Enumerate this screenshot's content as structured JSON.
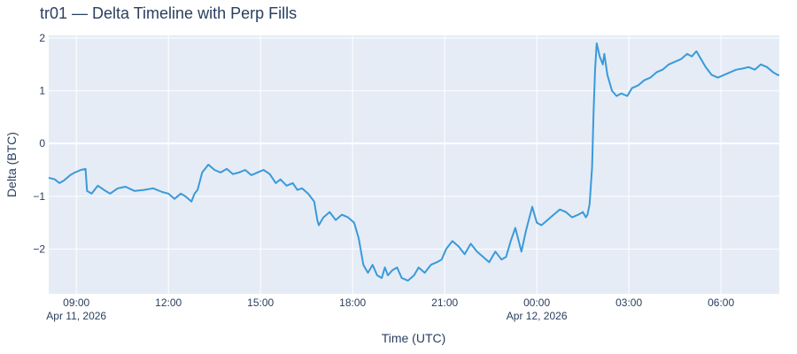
{
  "chart_data": {
    "type": "line",
    "title": "tr01 — Delta Timeline with Perp Fills",
    "xlabel": "Time (UTC)",
    "ylabel": "Delta (BTC)",
    "x_unit": "hours since 2026-04-11 00:00 UTC",
    "xlim": [
      8.1,
      31.9
    ],
    "ylim": [
      -2.85,
      2.05
    ],
    "yticks": [
      2,
      1,
      0,
      -1,
      -2
    ],
    "ytick_labels": [
      "2",
      "1",
      "0",
      "−1",
      "−2"
    ],
    "xticks": [
      {
        "x": 9,
        "label": "09:00",
        "date_label": "Apr 11, 2026"
      },
      {
        "x": 12,
        "label": "12:00",
        "date_label": ""
      },
      {
        "x": 15,
        "label": "15:00",
        "date_label": ""
      },
      {
        "x": 18,
        "label": "18:00",
        "date_label": ""
      },
      {
        "x": 21,
        "label": "21:00",
        "date_label": ""
      },
      {
        "x": 24,
        "label": "00:00",
        "date_label": "Apr 12, 2026"
      },
      {
        "x": 27,
        "label": "03:00",
        "date_label": ""
      },
      {
        "x": 30,
        "label": "06:00",
        "date_label": ""
      }
    ],
    "grid": true,
    "line_color": "#3a9ad9",
    "plot_bg": "#e5ecf6",
    "series": [
      {
        "name": "Delta",
        "x": [
          8.1,
          8.3,
          8.45,
          8.6,
          8.8,
          8.95,
          9.15,
          9.3,
          9.35,
          9.5,
          9.7,
          9.9,
          10.1,
          10.35,
          10.6,
          10.9,
          11.2,
          11.5,
          11.8,
          12.0,
          12.2,
          12.4,
          12.55,
          12.75,
          12.85,
          12.95,
          13.1,
          13.3,
          13.5,
          13.7,
          13.9,
          14.1,
          14.3,
          14.5,
          14.7,
          14.9,
          15.1,
          15.3,
          15.5,
          15.65,
          15.85,
          16.05,
          16.2,
          16.35,
          16.55,
          16.75,
          16.85,
          16.9,
          17.05,
          17.25,
          17.45,
          17.65,
          17.85,
          18.05,
          18.2,
          18.35,
          18.5,
          18.65,
          18.8,
          18.95,
          19.05,
          19.15,
          19.3,
          19.45,
          19.6,
          19.8,
          20.0,
          20.15,
          20.35,
          20.55,
          20.75,
          20.9,
          21.05,
          21.25,
          21.45,
          21.65,
          21.85,
          22.05,
          22.25,
          22.45,
          22.65,
          22.85,
          23.0,
          23.15,
          23.3,
          23.5,
          23.65,
          23.85,
          24.0,
          24.15,
          24.35,
          24.55,
          24.75,
          24.95,
          25.15,
          25.35,
          25.5,
          25.6,
          25.65,
          25.72,
          25.8,
          25.85,
          25.9,
          25.95,
          26.05,
          26.15,
          26.2,
          26.3,
          26.45,
          26.6,
          26.75,
          26.95,
          27.1,
          27.3,
          27.5,
          27.7,
          27.9,
          28.1,
          28.3,
          28.5,
          28.7,
          28.9,
          29.05,
          29.2,
          29.35,
          29.5,
          29.7,
          29.9,
          30.1,
          30.3,
          30.5,
          30.7,
          30.9,
          31.1,
          31.3,
          31.5,
          31.7,
          31.85,
          31.9
        ],
        "y": [
          -0.65,
          -0.68,
          -0.75,
          -0.7,
          -0.6,
          -0.55,
          -0.5,
          -0.48,
          -0.9,
          -0.95,
          -0.8,
          -0.88,
          -0.95,
          -0.85,
          -0.82,
          -0.9,
          -0.88,
          -0.85,
          -0.92,
          -0.95,
          -1.05,
          -0.95,
          -1.0,
          -1.1,
          -0.95,
          -0.88,
          -0.55,
          -0.4,
          -0.5,
          -0.55,
          -0.48,
          -0.58,
          -0.55,
          -0.5,
          -0.6,
          -0.55,
          -0.5,
          -0.58,
          -0.75,
          -0.68,
          -0.8,
          -0.75,
          -0.88,
          -0.85,
          -0.95,
          -1.1,
          -1.45,
          -1.55,
          -1.4,
          -1.3,
          -1.45,
          -1.35,
          -1.4,
          -1.5,
          -1.8,
          -2.3,
          -2.45,
          -2.3,
          -2.5,
          -2.55,
          -2.35,
          -2.5,
          -2.4,
          -2.35,
          -2.55,
          -2.6,
          -2.5,
          -2.35,
          -2.45,
          -2.3,
          -2.25,
          -2.2,
          -2.0,
          -1.85,
          -1.95,
          -2.1,
          -1.9,
          -2.05,
          -2.15,
          -2.25,
          -2.05,
          -2.2,
          -2.15,
          -1.85,
          -1.6,
          -2.05,
          -1.65,
          -1.2,
          -1.5,
          -1.55,
          -1.45,
          -1.35,
          -1.25,
          -1.3,
          -1.4,
          -1.35,
          -1.3,
          -1.4,
          -1.35,
          -1.15,
          -0.45,
          0.6,
          1.4,
          1.9,
          1.65,
          1.5,
          1.7,
          1.3,
          1.0,
          0.9,
          0.95,
          0.9,
          1.05,
          1.1,
          1.2,
          1.25,
          1.35,
          1.4,
          1.5,
          1.55,
          1.6,
          1.7,
          1.65,
          1.75,
          1.6,
          1.45,
          1.3,
          1.25,
          1.3,
          1.35,
          1.4,
          1.42,
          1.45,
          1.4,
          1.5,
          1.45,
          1.35,
          1.3,
          1.3
        ]
      }
    ]
  }
}
